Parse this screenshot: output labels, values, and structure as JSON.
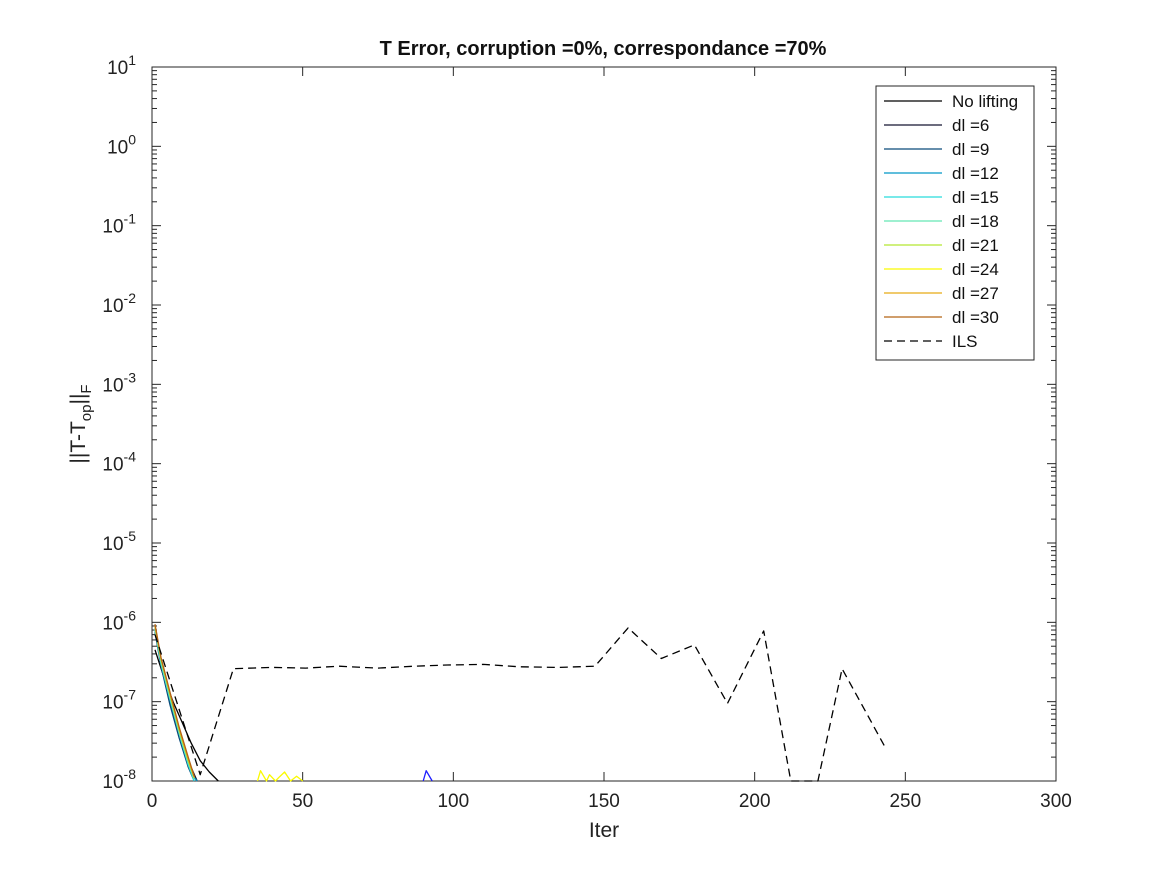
{
  "chart_data": {
    "type": "line",
    "title": "T Error, corruption =0%, correspondance =70%",
    "xlabel": "Iter",
    "ylabel": {
      "main": "||T-T",
      "sub": "op",
      "tail": "||",
      "sub2": "F"
    },
    "xlim": [
      0,
      300
    ],
    "ylim_exponent": [
      -8,
      1
    ],
    "yscale": "log",
    "x_ticks": [
      "0",
      "50",
      "100",
      "150",
      "200",
      "250",
      "300"
    ],
    "y_ticks": [
      {
        "base": "10",
        "exp": "1"
      },
      {
        "base": "10",
        "exp": "0"
      },
      {
        "base": "10",
        "exp": "-1"
      },
      {
        "base": "10",
        "exp": "-2"
      },
      {
        "base": "10",
        "exp": "-3"
      },
      {
        "base": "10",
        "exp": "-4"
      },
      {
        "base": "10",
        "exp": "-5"
      },
      {
        "base": "10",
        "exp": "-6"
      },
      {
        "base": "10",
        "exp": "-7"
      },
      {
        "base": "10",
        "exp": "-8"
      }
    ],
    "legend_position": "top-right",
    "grid": false,
    "series": [
      {
        "name": "No lifting",
        "color": "#000000",
        "dash": "solid",
        "x": [
          1,
          4,
          7,
          10,
          13,
          16,
          19,
          22
        ],
        "y": [
          4.5e-07,
          2e-07,
          1e-07,
          5.5e-08,
          3e-08,
          1.8e-08,
          1.3e-08,
          1e-08
        ]
      },
      {
        "name": "dl =6",
        "color": "#141432",
        "dash": "solid",
        "x": [
          1,
          3,
          6,
          9,
          12,
          15
        ],
        "y": [
          8e-07,
          3e-07,
          1e-07,
          4e-08,
          1.8e-08,
          1e-08
        ]
      },
      {
        "name": "dl =9",
        "color": "#0a4a7a",
        "dash": "solid",
        "x": [
          1,
          3,
          6,
          9,
          12,
          14
        ],
        "y": [
          7.5e-07,
          2.8e-07,
          9e-08,
          3.5e-08,
          1.5e-08,
          1e-08
        ]
      },
      {
        "name": "dl =12",
        "color": "#0096c8",
        "dash": "solid",
        "x": [
          1,
          3,
          6,
          9,
          12,
          14,
          15
        ],
        "y": [
          8.5e-07,
          3.2e-07,
          1.1e-07,
          4.2e-08,
          1.7e-08,
          1.1e-08,
          1e-08
        ]
      },
      {
        "name": "dl =15",
        "color": "#28dcdc",
        "dash": "solid",
        "x": [
          1,
          3,
          6,
          9,
          12,
          14
        ],
        "y": [
          8e-07,
          3e-07,
          1.05e-07,
          4e-08,
          1.6e-08,
          1e-08
        ]
      },
      {
        "name": "dl =18",
        "color": "#64e6b4",
        "dash": "solid",
        "x": [
          1,
          3,
          6,
          9,
          12,
          14
        ],
        "y": [
          8.2e-07,
          3.1e-07,
          1.1e-07,
          4.1e-08,
          1.7e-08,
          1.05e-08
        ]
      },
      {
        "name": "dl =21",
        "color": "#b4e632",
        "dash": "solid",
        "x": [
          1,
          3,
          6,
          9,
          12,
          14
        ],
        "y": [
          8.8e-07,
          3.4e-07,
          1.2e-07,
          4.4e-08,
          1.8e-08,
          1.1e-08
        ]
      },
      {
        "name": "dl =24",
        "color": "#fafa00",
        "dash": "solid",
        "x": [
          35,
          36,
          38,
          39,
          41,
          42,
          44,
          46,
          48,
          50
        ],
        "y": [
          1e-08,
          1.35e-08,
          1e-08,
          1.2e-08,
          1e-08,
          1.1e-08,
          1.3e-08,
          1e-08,
          1.15e-08,
          1e-08
        ]
      },
      {
        "name": "dl =27",
        "color": "#e6aa14",
        "dash": "solid",
        "x": [
          1,
          3,
          6,
          9,
          12,
          14
        ],
        "y": [
          9e-07,
          3.5e-07,
          1.25e-07,
          4.6e-08,
          1.9e-08,
          1.1e-08
        ]
      },
      {
        "name": "dl =30",
        "color": "#b46414",
        "dash": "solid",
        "x": [
          1,
          3,
          6,
          9,
          12,
          14
        ],
        "y": [
          9.5e-07,
          3.6e-07,
          1.3e-07,
          4.8e-08,
          2e-08,
          1.15e-08
        ]
      },
      {
        "name": "ILS",
        "color": "#000000",
        "dash": "dashed",
        "x": [
          1,
          16,
          27,
          40,
          51,
          62,
          75,
          87,
          98,
          110,
          122,
          135,
          147,
          158,
          169,
          180,
          191,
          203,
          212,
          221,
          229,
          243
        ],
        "y": [
          7e-07,
          1.2e-08,
          2.6e-07,
          2.7e-07,
          2.65e-07,
          2.8e-07,
          2.65e-07,
          2.8e-07,
          2.9e-07,
          2.95e-07,
          2.75e-07,
          2.7e-07,
          2.8e-07,
          8.5e-07,
          3.5e-07,
          5.2e-07,
          9.5e-08,
          7.8e-07,
          1e-08,
          1e-08,
          2.6e-07,
          2.8e-08
        ]
      }
    ],
    "extra_segments": [
      {
        "color": "#1e1eff",
        "x": [
          90,
          91,
          93
        ],
        "y": [
          1e-08,
          1.35e-08,
          1e-08
        ]
      }
    ]
  }
}
